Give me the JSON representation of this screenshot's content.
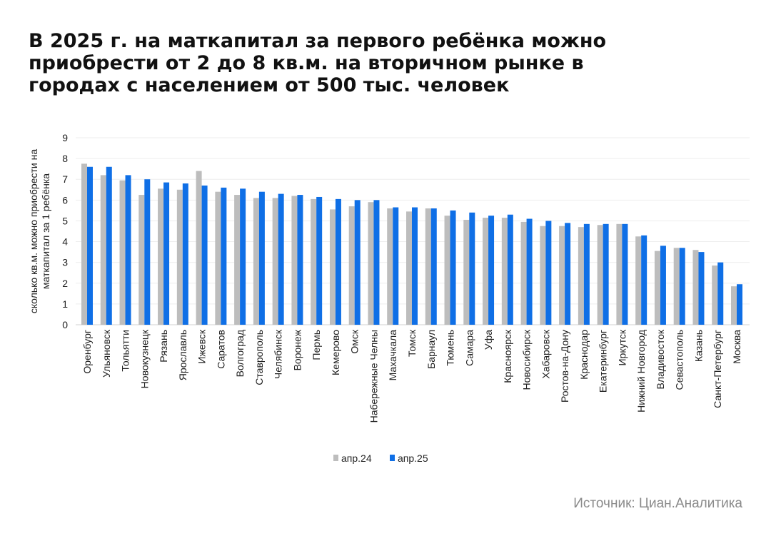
{
  "title": "В 2025 г. на маткапитал за первого ребёнка можно приобрести от 2 до 8 кв.м. на вторичном рынке в городах с населением от 500 тыс. человек",
  "source": "Источник: Циан.Аналитика",
  "chart_data": {
    "type": "bar",
    "title": "В 2025 г. на маткапитал за первого ребёнка можно приобрести от 2 до 8 кв.м. на вторичном рынке в городах с населением от 500 тыс. человек",
    "ylabel": "сколько кв.м. можно приобрести на маткапитал за 1 ребёнка",
    "xlabel": "",
    "ylim": [
      0,
      9
    ],
    "yticks": [
      0,
      1,
      2,
      3,
      4,
      5,
      6,
      7,
      8,
      9
    ],
    "grid": true,
    "legend_position": "bottom",
    "categories": [
      "Оренбург",
      "Ульяновск",
      "Тольятти",
      "Новокузнецк",
      "Рязань",
      "Ярославль",
      "Ижевск",
      "Саратов",
      "Волгоград",
      "Ставрополь",
      "Челябинск",
      "Воронеж",
      "Пермь",
      "Кемерово",
      "Омск",
      "Набережные Челны",
      "Махачкала",
      "Томск",
      "Барнаул",
      "Тюмень",
      "Самара",
      "Уфа",
      "Красноярск",
      "Новосибирск",
      "Хабаровск",
      "Ростов-на-Дону",
      "Краснодар",
      "Екатеринбург",
      "Иркутск",
      "Нижний Новгород",
      "Владивосток",
      "Севастополь",
      "Казань",
      "Санкт-Петербург",
      "Москва"
    ],
    "series": [
      {
        "name": "апр.24",
        "color": "#bdbdbd",
        "values": [
          7.75,
          7.2,
          6.95,
          6.25,
          6.55,
          6.5,
          7.4,
          6.4,
          6.25,
          6.1,
          6.1,
          6.2,
          6.05,
          5.55,
          5.7,
          5.9,
          5.6,
          5.45,
          5.6,
          5.25,
          5.05,
          5.15,
          5.15,
          4.95,
          4.75,
          4.75,
          4.7,
          4.8,
          4.85,
          4.25,
          3.55,
          3.7,
          3.6,
          2.85,
          1.85
        ]
      },
      {
        "name": "апр.25",
        "color": "#0f6fe6",
        "values": [
          7.6,
          7.6,
          7.2,
          7.0,
          6.85,
          6.8,
          6.7,
          6.6,
          6.55,
          6.4,
          6.3,
          6.25,
          6.15,
          6.05,
          6.0,
          6.0,
          5.65,
          5.65,
          5.6,
          5.5,
          5.4,
          5.25,
          5.3,
          5.1,
          5.0,
          4.9,
          4.85,
          4.85,
          4.85,
          4.3,
          3.8,
          3.7,
          3.5,
          3.0,
          1.95
        ]
      }
    ]
  }
}
